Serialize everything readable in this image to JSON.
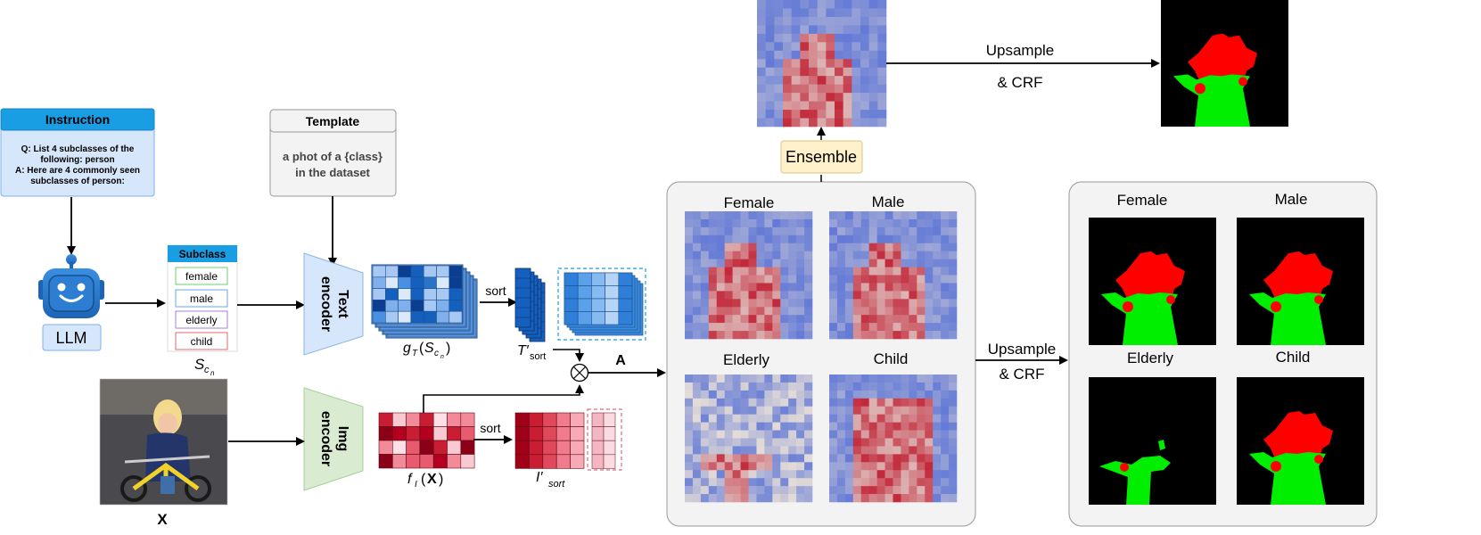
{
  "instruction": {
    "title": "Instruction",
    "lines": [
      "Q: List  4 subclasses of the",
      "following: person",
      "A: Here are 4 commonly seen",
      "subclasses of person:"
    ]
  },
  "llm": {
    "label": "LLM"
  },
  "subclass": {
    "title": "Subclass",
    "items": [
      "female",
      "male",
      "elderly",
      "child"
    ],
    "symbol_main": "S",
    "symbol_sub": "c",
    "symbol_subsub": "n"
  },
  "template": {
    "title": "Template",
    "lines": [
      "a phot of a {class}",
      "in the dataset"
    ]
  },
  "text_encoder": {
    "label_line1": "Text",
    "label_line2": "encoder"
  },
  "img_encoder": {
    "label_line1": "Img",
    "label_line2": "encoder"
  },
  "text_features": {
    "label_g": "g",
    "label_T": "T",
    "label_S": "S",
    "label_c": "c",
    "label_n": "n"
  },
  "sort_label_top": "sort",
  "sort_label_bottom": "sort",
  "t_sort": {
    "main": "T′",
    "sub": "sort"
  },
  "f_img": {
    "label": "f",
    "sub": "I",
    "arg": "X"
  },
  "i_sort": {
    "main": "I′",
    "sub": "sort"
  },
  "a_label": "A",
  "x_label": "X",
  "ensemble": {
    "label": "Ensemble"
  },
  "upsample_top": {
    "line1": "Upsample",
    "line2": "& CRF"
  },
  "upsample_mid": {
    "line1": "Upsample",
    "line2": "& CRF"
  },
  "heatmap_panel": {
    "labels": [
      "Female",
      "Male",
      "Elderly",
      "Child"
    ]
  },
  "mask_panel": {
    "labels": [
      "Female",
      "Male",
      "Elderly",
      "Child"
    ]
  },
  "colors": {
    "instruction_header": "#1a9ee3",
    "instruction_body": "#d6e7fb",
    "robot": "#2d7dd2",
    "llm_box": "#d6e7fb",
    "text_encoder": "#d6e7fb",
    "img_encoder": "#d9ecd2",
    "ensemble": "#fff1c9",
    "panel_bg": "#f3f3f3",
    "mask_red": "#ff0000",
    "mask_green": "#00ee00"
  }
}
